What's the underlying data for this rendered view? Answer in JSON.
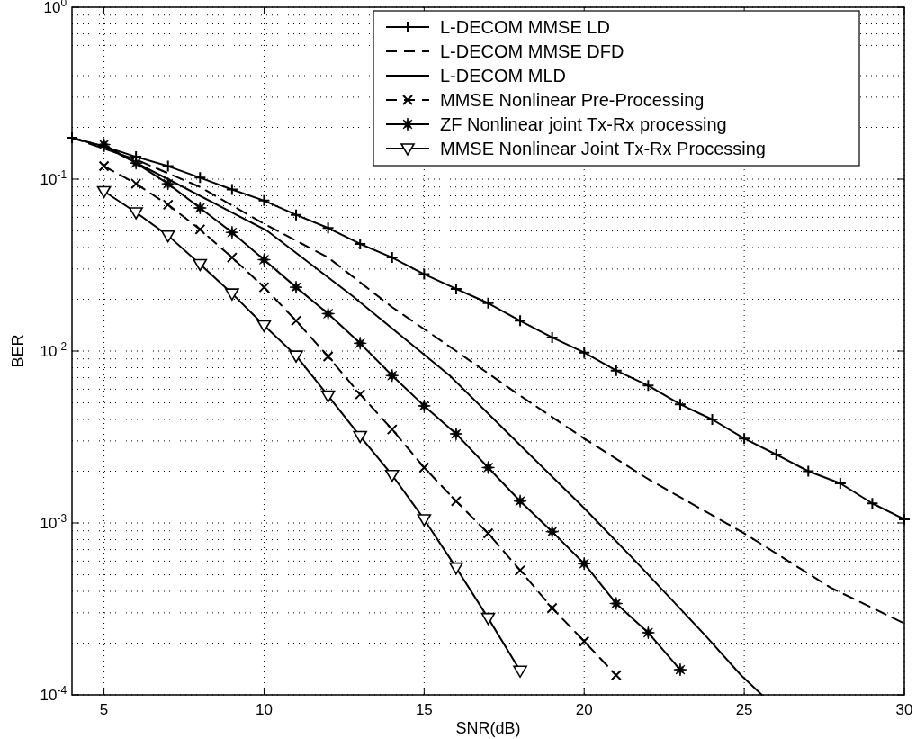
{
  "chart_data": {
    "type": "line",
    "xlabel": "SNR(dB)",
    "ylabel": "BER",
    "log": "y",
    "grid": true,
    "legend": "top right",
    "xlim": [
      4,
      30
    ],
    "xticks": [
      5,
      10,
      15,
      20,
      25,
      30
    ],
    "ylim": [
      0.0001,
      1
    ],
    "yticks": [
      {
        "value": 0.0001,
        "label": "10$^{-4}$"
      },
      {
        "value": 0.001,
        "label": "10$^{-3}$"
      },
      {
        "value": 0.01,
        "label": "10$^{-2}$"
      },
      {
        "value": 0.1,
        "label": "10$^{-1}$"
      },
      {
        "value": 1,
        "label": "10$^{0}$"
      }
    ],
    "series": [
      {
        "name": "L-DECOM MMSE LD",
        "color": "#000000",
        "marker": "plus",
        "line_style": "solid",
        "x": [
          4,
          5,
          6,
          7,
          8,
          9,
          10,
          11,
          12,
          13,
          14,
          15,
          16,
          17,
          18,
          19,
          20,
          21,
          22,
          23,
          24,
          25,
          26,
          27,
          28,
          29,
          30
        ],
        "values": [
          0.174,
          0.155,
          0.135,
          0.119,
          0.102,
          0.087,
          0.075,
          0.062,
          0.052,
          0.042,
          0.035,
          0.028,
          0.023,
          0.019,
          0.015,
          0.012,
          0.0098,
          0.0077,
          0.0063,
          0.0049,
          0.004,
          0.0031,
          0.0025,
          0.002,
          0.0017,
          0.0013,
          0.00105
        ]
      },
      {
        "name": "L-DECOM MMSE DFD",
        "color": "#000000",
        "marker": "none",
        "line_style": "dashed",
        "x": [
          4,
          6,
          8,
          10,
          12,
          14,
          16,
          18,
          20,
          22,
          25,
          27.7,
          30
        ],
        "values": [
          0.174,
          0.13,
          0.09,
          0.055,
          0.035,
          0.018,
          0.01,
          0.0055,
          0.0031,
          0.0018,
          0.00087,
          0.00042,
          0.00026
        ]
      },
      {
        "name": "L-DECOM MLD",
        "color": "#000000",
        "marker": "none",
        "line_style": "solid",
        "x": [
          4,
          5,
          7,
          10.1,
          12.75,
          15.8,
          17.5,
          20,
          21.6,
          23.8,
          24.9,
          25.55
        ],
        "values": [
          0.174,
          0.155,
          0.1,
          0.05,
          0.021,
          0.0072,
          0.0035,
          0.00122,
          0.0006,
          0.00022,
          0.00013,
          0.0001
        ]
      },
      {
        "name": "MMSE Nonlinear Pre-Processing",
        "color": "#000000",
        "marker": "cross",
        "line_style": "dashed",
        "x": [
          5,
          6,
          7,
          8,
          9,
          10,
          11,
          12,
          13,
          14,
          15,
          16,
          17,
          18,
          19,
          20,
          21
        ],
        "values": [
          0.119,
          0.094,
          0.071,
          0.051,
          0.035,
          0.0235,
          0.015,
          0.0093,
          0.0056,
          0.0035,
          0.0021,
          0.00134,
          0.00087,
          0.00053,
          0.00032,
          0.000205,
          0.00013
        ]
      },
      {
        "name": "ZF Nonlinear joint Tx-Rx processing",
        "color": "#000000",
        "marker": "star",
        "line_style": "solid",
        "x": [
          5,
          6,
          7,
          8,
          9,
          10,
          11,
          12,
          13,
          14,
          15,
          16,
          17,
          18,
          19,
          20,
          21,
          22,
          23
        ],
        "values": [
          0.159,
          0.124,
          0.094,
          0.068,
          0.049,
          0.034,
          0.0235,
          0.0165,
          0.0111,
          0.0072,
          0.0048,
          0.0033,
          0.0021,
          0.00134,
          0.00089,
          0.00058,
          0.00034,
          0.00023,
          0.00014
        ]
      },
      {
        "name": "MMSE Nonlinear Joint Tx-Rx Processing",
        "color": "#000000",
        "marker": "triangle",
        "line_style": "solid",
        "x": [
          5,
          6,
          7,
          8,
          9,
          10,
          11,
          12,
          13,
          14,
          15,
          16,
          17,
          18
        ],
        "values": [
          0.085,
          0.064,
          0.047,
          0.032,
          0.0216,
          0.0141,
          0.0094,
          0.0055,
          0.0032,
          0.0019,
          0.00105,
          0.00055,
          0.00028,
          0.000138
        ]
      }
    ]
  }
}
